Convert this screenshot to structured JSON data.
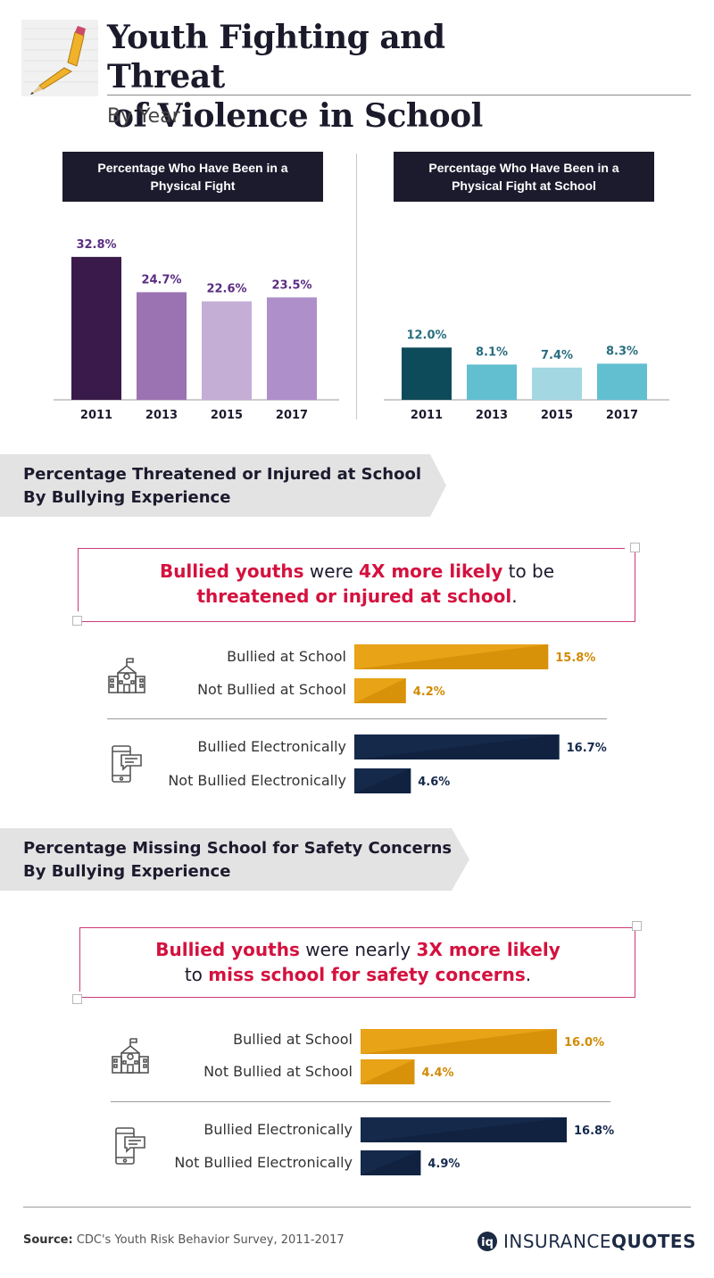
{
  "header": {
    "title_line1": "Youth Fighting and Threat",
    "title_line2": "of Violence in School",
    "subtitle": "By Year",
    "pencil_icon": "broken-pencil-icon"
  },
  "colors": {
    "navy": "#1c1b2e",
    "purple_2011": "#3a1a4a",
    "purple_2013": "#9b73b3",
    "purple_2015": "#c4aed6",
    "purple_2017": "#ae8fca",
    "purple_label": "#5a2d82",
    "teal_2011": "#0e4b5a",
    "teal_2013": "#62bfd0",
    "teal_2015": "#a3d8e2",
    "teal_2017": "#62bfd0",
    "teal_label": "#2a6d80",
    "orange": "#e8a317",
    "orange_dark": "#d28a05",
    "dark_blue": "#15294b",
    "highlight": "#d4123f",
    "callout_border": "#cc3a7a",
    "banner_grey": "#e3e3e3"
  },
  "chart_data": [
    {
      "type": "bar",
      "title": "Percentage Who Have Been in a Physical Fight",
      "categories": [
        "2011",
        "2013",
        "2015",
        "2017"
      ],
      "values": [
        32.8,
        24.7,
        22.6,
        23.5
      ],
      "value_labels": [
        "32.8%",
        "24.7%",
        "22.6%",
        "23.5%"
      ],
      "ylim": [
        0,
        35
      ],
      "xlabel": "",
      "ylabel": "",
      "grid": false
    },
    {
      "type": "bar",
      "title": "Percentage Who Have Been in a Physical Fight at School",
      "categories": [
        "2011",
        "2013",
        "2015",
        "2017"
      ],
      "values": [
        12.0,
        8.1,
        7.4,
        8.3
      ],
      "value_labels": [
        "12.0%",
        "8.1%",
        "7.4%",
        "8.3%"
      ],
      "ylim": [
        0,
        35
      ],
      "xlabel": "",
      "ylabel": "",
      "grid": false
    },
    {
      "type": "bar",
      "orientation": "horizontal",
      "title": "Percentage Threatened or Injured at School By Bullying Experience",
      "categories": [
        "Bullied at School",
        "Not Bullied at School",
        "Bullied Electronically",
        "Not Bullied Electronically"
      ],
      "values": [
        15.8,
        4.2,
        16.7,
        4.6
      ],
      "value_labels": [
        "15.8%",
        "4.2%",
        "16.7%",
        "4.6%"
      ],
      "xlim": [
        0,
        17
      ]
    },
    {
      "type": "bar",
      "orientation": "horizontal",
      "title": "Percentage Missing School for Safety Concerns By Bullying Experience",
      "categories": [
        "Bullied at School",
        "Not Bullied at School",
        "Bullied Electronically",
        "Not Bullied Electronically"
      ],
      "values": [
        16.0,
        4.4,
        16.8,
        4.9
      ],
      "value_labels": [
        "16.0%",
        "4.4%",
        "16.8%",
        "4.9%"
      ],
      "xlim": [
        0,
        17
      ]
    }
  ],
  "panels": {
    "fight_title": "Percentage Who Have Been in a Physical Fight",
    "fight_school_title": "Percentage Who Have Been in a Physical Fight at School"
  },
  "section1": {
    "banner_line1": "Percentage Threatened or Injured at School",
    "banner_line2": "By Bullying Experience",
    "callout": {
      "part1": "Bullied youths",
      "part2": " were ",
      "part3": "4X more likely",
      "part4": " to be",
      "part5": "threatened or injured at school",
      "part6": "."
    },
    "rows": [
      "Bullied at School",
      "Not Bullied at School",
      "Bullied Electronically",
      "Not Bullied Electronically"
    ],
    "school_icon": "school-building-icon",
    "phone_icon": "phone-message-icon"
  },
  "section2": {
    "banner_line1": "Percentage Missing School for Safety Concerns",
    "banner_line2": "By Bullying Experience",
    "callout": {
      "part1": "Bullied youths",
      "part2": " were nearly ",
      "part3": "3X more likely",
      "part4": "to ",
      "part5": "miss school for safety concerns",
      "part6": "."
    },
    "rows": [
      "Bullied at School",
      "Not Bullied at School",
      "Bullied Electronically",
      "Not Bullied Electronically"
    ],
    "school_icon": "school-building-icon",
    "phone_icon": "phone-message-icon"
  },
  "footer": {
    "source_label": "Source:",
    "source_text": " CDC's Youth Risk Behavior Survey, 2011-2017",
    "logo_word1": "INSURANCE",
    "logo_word2": "QUOTES"
  }
}
